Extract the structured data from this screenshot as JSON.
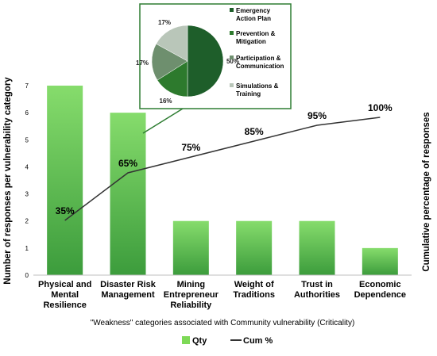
{
  "chart_data": [
    {
      "type": "bar",
      "categories": [
        [
          "Physical and",
          "Mental",
          "Resilience"
        ],
        [
          "Disaster Risk",
          "Management"
        ],
        [
          "Mining",
          "Entrepreneur",
          "Reliability"
        ],
        [
          "Weight of",
          "Traditions"
        ],
        [
          "Trust in",
          "Authorities"
        ],
        [
          "Economic",
          "Dependence"
        ]
      ],
      "series": [
        {
          "name": "Qty",
          "values": [
            7,
            6,
            2,
            2,
            2,
            1
          ],
          "color": "#7ed957"
        },
        {
          "name": "Cum %",
          "values": [
            35,
            65,
            75,
            85,
            95,
            100
          ],
          "labels": [
            "35%",
            "65%",
            "75%",
            "85%",
            "95%",
            "100%"
          ],
          "color": "#333333"
        }
      ],
      "xlabel": "\"Weakness\" categories associated with Community vulnerability (Criticality)",
      "ylabel": "Number of responses per vulnerability category",
      "y2label": "Cumulative percentage of responses",
      "ylim": [
        0,
        7
      ],
      "yticks": [
        "0",
        "1",
        "2",
        "3",
        "4",
        "5",
        "6",
        "7"
      ],
      "grid": false,
      "legend": "bottom",
      "legend_labels": [
        "Qty",
        "Cum %"
      ]
    },
    {
      "type": "pie",
      "slices": [
        {
          "label": [
            "Emergency",
            "Action Plan"
          ],
          "value": 50,
          "pct": "50%",
          "color": "#1e5e2a"
        },
        {
          "label": [
            "Prevention &",
            "Mitigation"
          ],
          "value": 16,
          "pct": "16%",
          "color": "#2d7a2d"
        },
        {
          "label": [
            "Participation &",
            "Communication"
          ],
          "value": 17,
          "pct": "17%",
          "color": "#6e8f6e"
        },
        {
          "label": [
            "Simulations &",
            "Training"
          ],
          "value": 17,
          "pct": "17%",
          "color": "#b9c6b9"
        }
      ],
      "legend": "right"
    }
  ]
}
